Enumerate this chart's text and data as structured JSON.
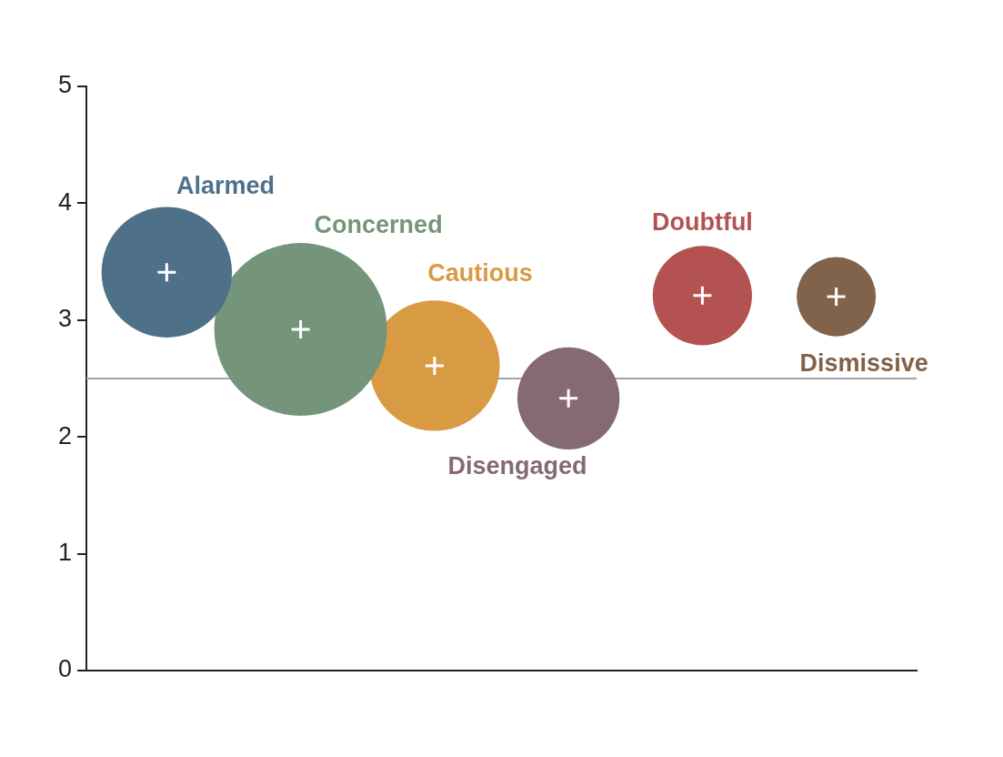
{
  "chart_data": {
    "type": "bubble",
    "categories": [
      null,
      null,
      null,
      null,
      null,
      null
    ],
    "series": [
      {
        "name": "Alarmed",
        "color": "#4e7189",
        "values": [
          3.41,
          null,
          null,
          null,
          null,
          null
        ],
        "sizes": [
          0.57,
          null,
          null,
          null,
          null,
          null
        ]
      },
      {
        "name": "Concerned",
        "color": "#74957a",
        "values": [
          null,
          2.92,
          null,
          null,
          null,
          null
        ],
        "sizes": [
          null,
          1,
          null,
          null,
          null,
          null
        ]
      },
      {
        "name": "Cautious",
        "color": "#d99a44",
        "values": [
          null,
          null,
          2.61,
          null,
          null,
          null
        ],
        "sizes": [
          null,
          null,
          0.57,
          null,
          null,
          null
        ]
      },
      {
        "name": "Disengaged",
        "color": "#866a72",
        "values": [
          null,
          null,
          null,
          2.33,
          null,
          null
        ],
        "sizes": [
          null,
          null,
          null,
          0.35,
          null,
          null
        ]
      },
      {
        "name": "Doubtful",
        "color": "#b35250",
        "values": [
          null,
          null,
          null,
          null,
          3.21,
          null
        ],
        "sizes": [
          null,
          null,
          null,
          null,
          0.33,
          null
        ]
      },
      {
        "name": "Dismissive",
        "color": "#81624a",
        "values": [
          null,
          null,
          null,
          null,
          null,
          3.2
        ],
        "sizes": [
          null,
          null,
          null,
          null,
          null,
          0.21
        ]
      }
    ],
    "ylim": [
      0,
      5
    ],
    "yticks": [
      0,
      1,
      2,
      3,
      4,
      5
    ],
    "grid": false,
    "legend": false,
    "tick_labels": "y",
    "ref_lines": [
      {
        "axis": "y",
        "value": 2.5,
        "color": "#a0a4a8"
      }
    ]
  }
}
